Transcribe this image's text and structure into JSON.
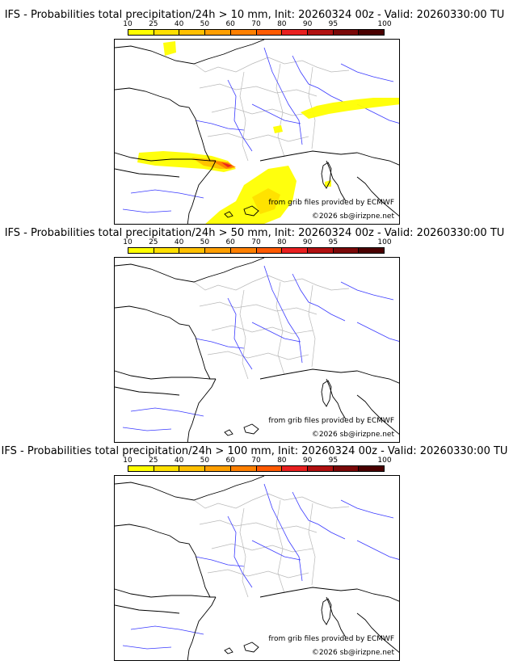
{
  "colorbar": {
    "ticks": [
      "10",
      "25",
      "40",
      "50",
      "60",
      "70",
      "80",
      "90",
      "95",
      "100"
    ],
    "colors": [
      "#ffff00",
      "#ffe000",
      "#ffc000",
      "#ff9f00",
      "#ff8000",
      "#ff5a00",
      "#e82020",
      "#b01010",
      "#7a0808",
      "#4a0000"
    ]
  },
  "credits": {
    "source": "from grib files provided by ECMWF",
    "copyright": "©2026 sb@irizpne.net"
  },
  "panels": [
    {
      "title": "IFS - Probabilities total precipitation/24h > 10 mm, Init: 20260324 00z - Valid: 20260330:00 TU",
      "threshold_mm": 10,
      "has_precip": true
    },
    {
      "title": "IFS - Probabilities total precipitation/24h > 50 mm, Init: 20260324 00z - Valid: 20260330:00 TU",
      "threshold_mm": 50,
      "has_precip": false
    },
    {
      "title": "IFS - Probabilities total precipitation/24h > 100 mm, Init: 20260324 00z - Valid: 20260330:00 TU",
      "threshold_mm": 100,
      "has_precip": false
    }
  ],
  "region": "France"
}
